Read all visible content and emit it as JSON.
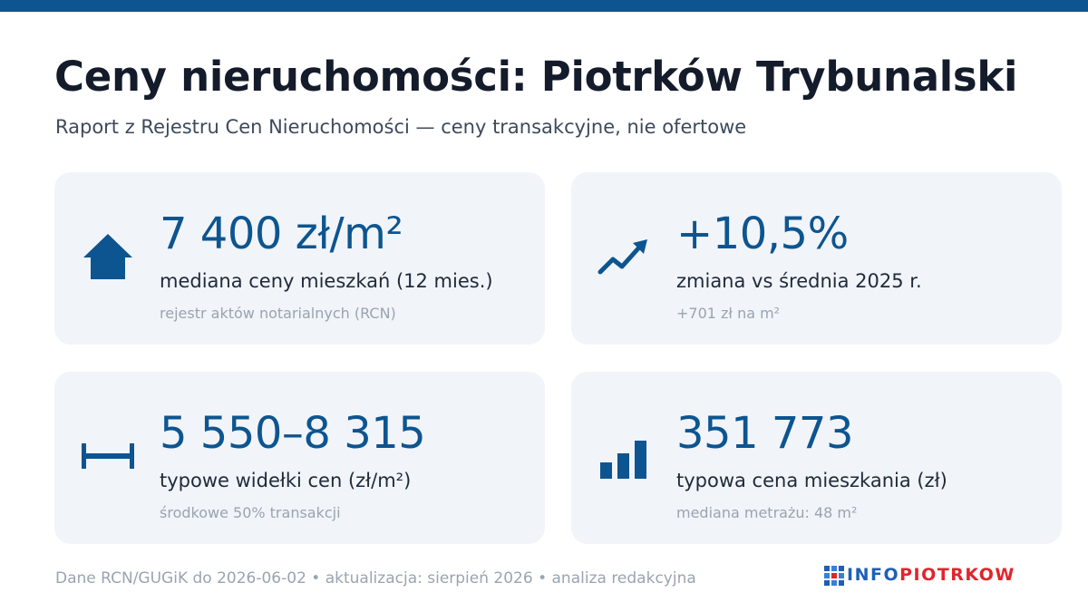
{
  "header": {
    "title": "Ceny nieruchomości: Piotrków Trybunalski",
    "subtitle": "Raport z Rejestru Cen Nieruchomości — ceny transakcyjne, nie ofertowe"
  },
  "cards": [
    {
      "icon": "house-icon",
      "value": "7 400 zł/m²",
      "label": "mediana ceny mieszkań (12 mies.)",
      "note": "rejestr aktów notarialnych (RCN)"
    },
    {
      "icon": "trend-up-icon",
      "value": "+10,5%",
      "label": "zmiana vs średnia 2025 r.",
      "note": "+701 zł na m²"
    },
    {
      "icon": "range-icon",
      "value": "5 550–8 315",
      "label": "typowe widełki cen (zł/m²)",
      "note": "środkowe 50% transakcji"
    },
    {
      "icon": "bar-chart-icon",
      "value": "351 773",
      "label": "typowa cena mieszkania (zł)",
      "note": "mediana metrażu: 48 m²"
    }
  ],
  "footer": {
    "text": "Dane RCN/GUGiK do 2026-06-02 • aktualizacja: sierpień 2026 • analiza redakcyjna"
  },
  "logo": {
    "part1": "INFO",
    "part2": "PIOTRKOW"
  },
  "colors": {
    "accent": "#0d5590",
    "card_bg": "#f1f4f8",
    "logo_blue": "#1e5fb8",
    "logo_red": "#e0252c"
  }
}
